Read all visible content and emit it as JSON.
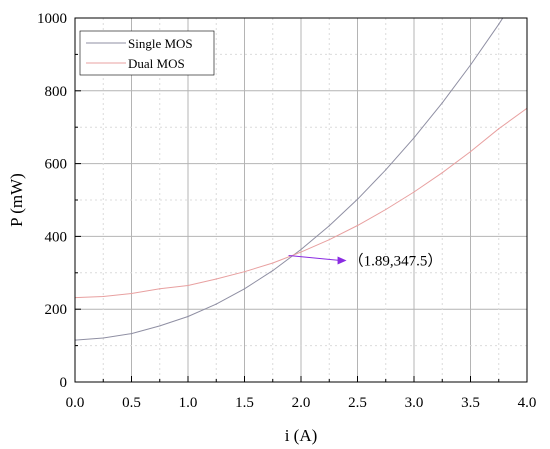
{
  "chart_data": {
    "type": "line",
    "xlabel": "i (A)",
    "ylabel": "P (mW)",
    "xlim": [
      0.0,
      4.0
    ],
    "ylim": [
      0,
      1000
    ],
    "x_ticks": [
      "0.0",
      "0.5",
      "1.0",
      "1.5",
      "2.0",
      "2.5",
      "3.0",
      "3.5",
      "4.0"
    ],
    "y_ticks": [
      "0",
      "200",
      "400",
      "600",
      "800",
      "1000"
    ],
    "grid": true,
    "legend_position": "top-left",
    "x": [
      0.0,
      0.25,
      0.5,
      0.75,
      1.0,
      1.25,
      1.5,
      1.75,
      2.0,
      2.25,
      2.5,
      2.75,
      3.0,
      3.25,
      3.5,
      3.75,
      4.0
    ],
    "series": [
      {
        "name": "Single MOS",
        "color": "#8f8fa3",
        "values": [
          115,
          121,
          133,
          154,
          180,
          214,
          256,
          306,
          364,
          429,
          502,
          583,
          671,
          767,
          871,
          983,
          1104
        ]
      },
      {
        "name": "Dual MOS",
        "color": "#e8a0a0",
        "values": [
          232,
          235,
          243,
          256,
          265,
          283,
          303,
          327,
          357,
          391,
          430,
          474,
          522,
          575,
          633,
          696,
          752
        ]
      }
    ],
    "annotation": {
      "text": "（1.89,347.5）",
      "x": 1.89,
      "y": 347.5,
      "color": "#8a2be2"
    }
  }
}
